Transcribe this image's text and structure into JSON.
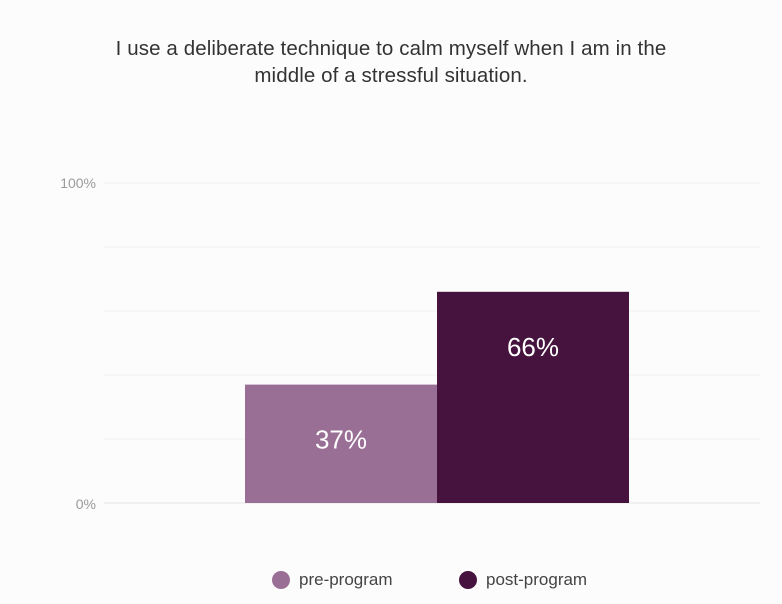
{
  "chart_data": {
    "type": "bar",
    "title_lines": [
      "I use a deliberate technique to calm myself when I am in the",
      "middle of a stressful situation."
    ],
    "categories": [
      "pre-program",
      "post-program"
    ],
    "values": [
      37,
      66
    ],
    "value_labels": [
      "37%",
      "66%"
    ],
    "ylim": [
      0,
      100
    ],
    "y_tick_labels": [
      "0%",
      "100%"
    ],
    "gridlines_at": [
      0,
      20,
      40,
      60,
      80,
      100
    ],
    "grid": true,
    "legend_position": "bottom-center",
    "colors": [
      "#9a6f96",
      "#45133d"
    ]
  }
}
